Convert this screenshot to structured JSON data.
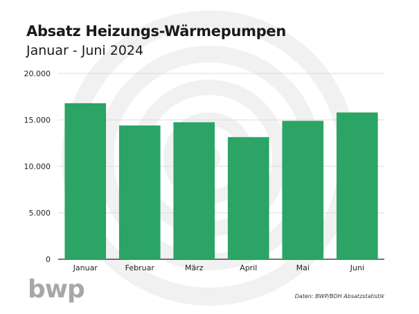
{
  "chart_data": {
    "type": "bar",
    "title": "Absatz Heizungs-Wärmepumpen",
    "subtitle": "Januar - Juni 2024",
    "categories": [
      "Januar",
      "Februar",
      "März",
      "April",
      "Mai",
      "Juni"
    ],
    "values": [
      16800,
      14400,
      14750,
      13150,
      14900,
      15800
    ],
    "ylim": [
      0,
      20000
    ],
    "yticks": [
      {
        "value": 0,
        "label": "0"
      },
      {
        "value": 5000,
        "label": "5.000"
      },
      {
        "value": 10000,
        "label": "10.000"
      },
      {
        "value": 15000,
        "label": "15.000"
      },
      {
        "value": 20000,
        "label": "20.000"
      }
    ],
    "grid": true,
    "bar_color": "#2ba466",
    "source": "Daten: BWP/BDH Absatzstatistik"
  },
  "branding": {
    "logo_text": "bwp",
    "logo_color": "#a7a7a7",
    "watermark_color": "#f1f1f1"
  }
}
